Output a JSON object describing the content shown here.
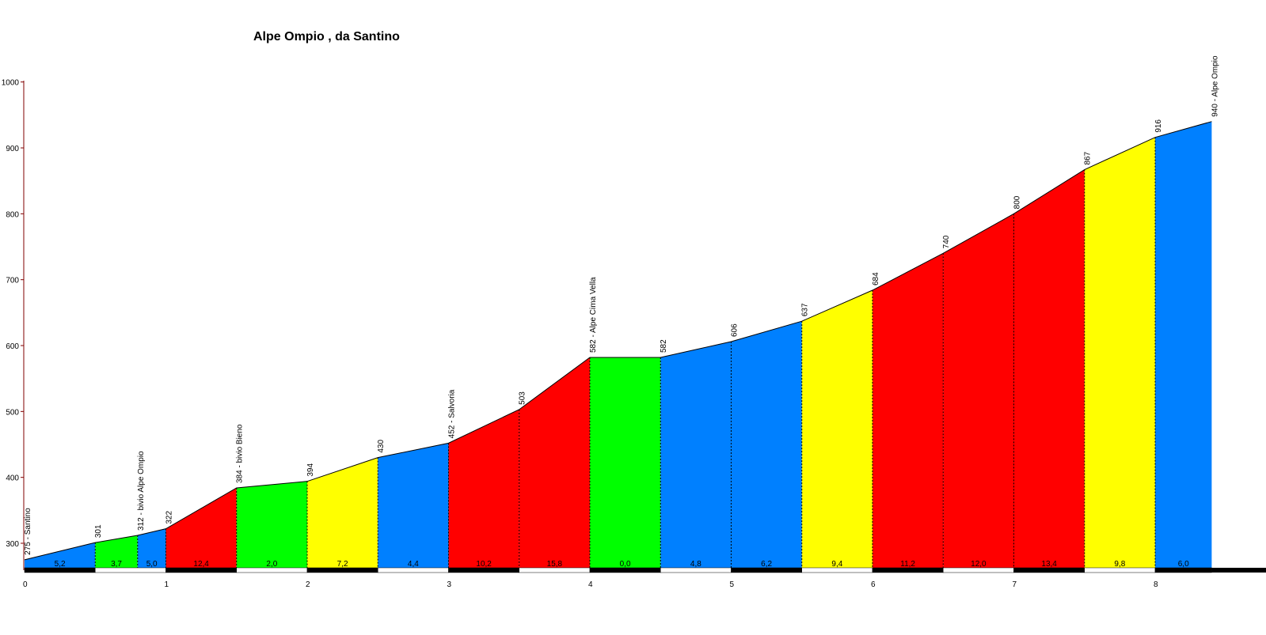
{
  "chart_data": {
    "type": "area",
    "title": "Alpe Ompio , da Santino",
    "xlabel": "",
    "ylabel": "",
    "xlim": [
      0,
      8.4
    ],
    "ylim": [
      260,
      1000
    ],
    "x_ticks": [
      "0",
      "1",
      "2",
      "3",
      "4",
      "5",
      "6",
      "7",
      "8"
    ],
    "y_ticks": [
      "300",
      "400",
      "500",
      "600",
      "700",
      "800",
      "900",
      "1000"
    ],
    "grid": false,
    "legend": "none",
    "colors": {
      "red": "#ff0000",
      "green": "#00ff00",
      "blue": "#0080ff",
      "yellow": "#ffff00",
      "axis": "#800000"
    },
    "points": [
      {
        "x": 0.0,
        "y": 275,
        "label": "275 - Santino"
      },
      {
        "x": 0.5,
        "y": 301,
        "label": "301"
      },
      {
        "x": 0.8,
        "y": 312,
        "label": "312 - bivio Alpe Ompio"
      },
      {
        "x": 1.0,
        "y": 322,
        "label": "322"
      },
      {
        "x": 1.5,
        "y": 384,
        "label": "384 - bivio Bieno"
      },
      {
        "x": 2.0,
        "y": 394,
        "label": "394"
      },
      {
        "x": 2.5,
        "y": 430,
        "label": "430"
      },
      {
        "x": 3.0,
        "y": 452,
        "label": "452 - Salvoria"
      },
      {
        "x": 3.5,
        "y": 503,
        "label": "503"
      },
      {
        "x": 4.0,
        "y": 582,
        "label": "582 - Alpe Cima Vella"
      },
      {
        "x": 4.5,
        "y": 582,
        "label": "582"
      },
      {
        "x": 5.0,
        "y": 606,
        "label": "606"
      },
      {
        "x": 5.5,
        "y": 637,
        "label": "637"
      },
      {
        "x": 6.0,
        "y": 684,
        "label": "684"
      },
      {
        "x": 6.5,
        "y": 740,
        "label": "740"
      },
      {
        "x": 7.0,
        "y": 800,
        "label": "800"
      },
      {
        "x": 7.5,
        "y": 867,
        "label": "867"
      },
      {
        "x": 8.0,
        "y": 916,
        "label": "916"
      },
      {
        "x": 8.4,
        "y": 940,
        "label": "940 - Alpe Ompio"
      }
    ],
    "segments": [
      {
        "x0": 0.0,
        "x1": 0.5,
        "gradient": "5,2",
        "color": "blue"
      },
      {
        "x0": 0.5,
        "x1": 0.8,
        "gradient": "3,7",
        "color": "green"
      },
      {
        "x0": 0.8,
        "x1": 1.0,
        "gradient": "5,0",
        "color": "blue"
      },
      {
        "x0": 1.0,
        "x1": 1.5,
        "gradient": "12,4",
        "color": "red"
      },
      {
        "x0": 1.5,
        "x1": 2.0,
        "gradient": "2,0",
        "color": "green"
      },
      {
        "x0": 2.0,
        "x1": 2.5,
        "gradient": "7,2",
        "color": "yellow"
      },
      {
        "x0": 2.5,
        "x1": 3.0,
        "gradient": "4,4",
        "color": "blue"
      },
      {
        "x0": 3.0,
        "x1": 3.5,
        "gradient": "10,2",
        "color": "red"
      },
      {
        "x0": 3.5,
        "x1": 4.0,
        "gradient": "15,8",
        "color": "red"
      },
      {
        "x0": 4.0,
        "x1": 4.5,
        "gradient": "0,0",
        "color": "green"
      },
      {
        "x0": 4.5,
        "x1": 5.0,
        "gradient": "4,8",
        "color": "blue"
      },
      {
        "x0": 5.0,
        "x1": 5.5,
        "gradient": "6,2",
        "color": "blue"
      },
      {
        "x0": 5.5,
        "x1": 6.0,
        "gradient": "9,4",
        "color": "yellow"
      },
      {
        "x0": 6.0,
        "x1": 6.5,
        "gradient": "11,2",
        "color": "red"
      },
      {
        "x0": 6.5,
        "x1": 7.0,
        "gradient": "12,0",
        "color": "red"
      },
      {
        "x0": 7.0,
        "x1": 7.5,
        "gradient": "13,4",
        "color": "red"
      },
      {
        "x0": 7.5,
        "x1": 8.0,
        "gradient": "9,8",
        "color": "yellow"
      },
      {
        "x0": 8.0,
        "x1": 8.4,
        "gradient": "6,0",
        "color": "blue"
      }
    ]
  }
}
